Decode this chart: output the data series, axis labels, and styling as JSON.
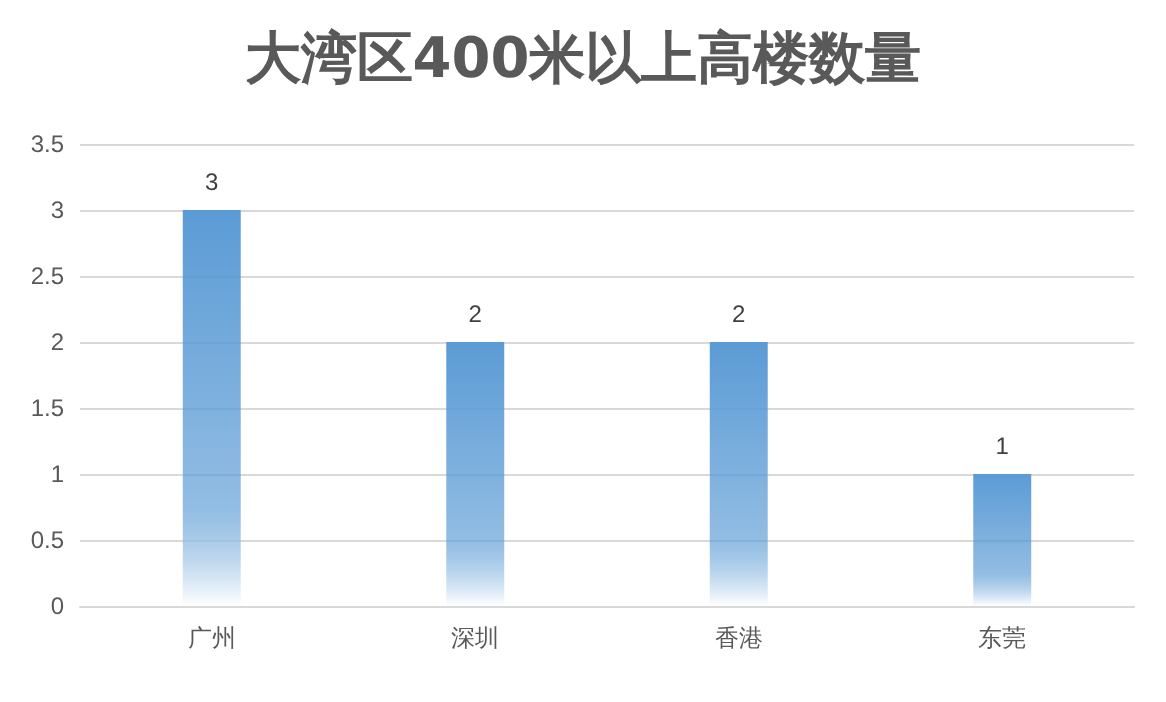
{
  "chart_data": {
    "type": "bar",
    "title": "大湾区400米以上高楼数量",
    "categories": [
      "广州",
      "深圳",
      "香港",
      "东莞"
    ],
    "values": [
      3,
      2,
      2,
      1
    ],
    "color": "#5b9bd5",
    "ylim": [
      0,
      3.5
    ],
    "yticks": [
      0,
      0.5,
      1,
      1.5,
      2,
      2.5,
      3,
      3.5
    ],
    "grid": "y",
    "data_labels": true
  }
}
